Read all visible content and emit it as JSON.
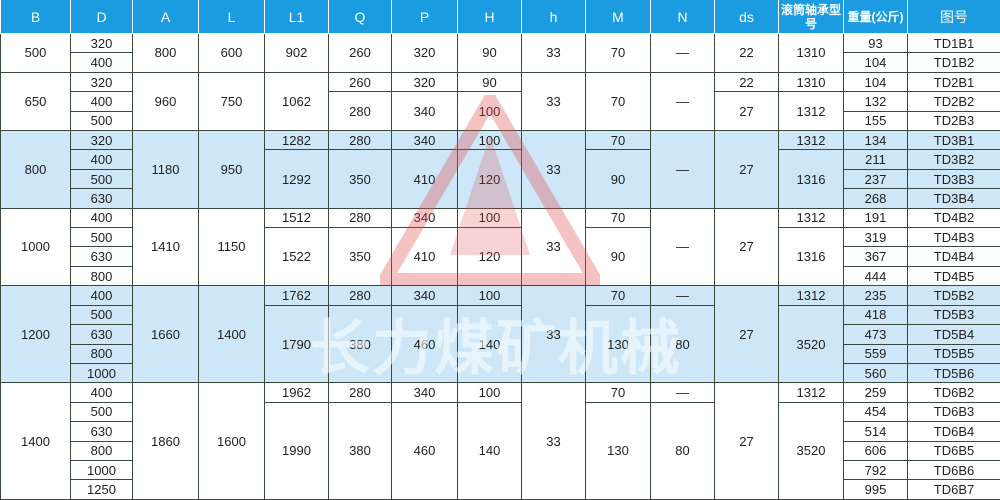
{
  "headers": [
    "B",
    "D",
    "A",
    "L",
    "L1",
    "Q",
    "P",
    "H",
    "h",
    "M",
    "N",
    "ds",
    "滚筒轴承型号",
    "重量(公斤)",
    "图号"
  ],
  "colors": {
    "header": "#1b9be0",
    "highlight_row": "#cde7f8",
    "watermark": "#e05050"
  },
  "watermark": "长力煤矿机械",
  "groups": [
    {
      "highlight": false,
      "rows": [
        [
          {
            "t": "500",
            "rs": 2
          },
          {
            "t": "320"
          },
          {
            "t": "800",
            "rs": 2
          },
          {
            "t": "600",
            "rs": 2
          },
          {
            "t": "902",
            "rs": 2
          },
          {
            "t": "260",
            "rs": 2
          },
          {
            "t": "320",
            "rs": 2
          },
          {
            "t": "90",
            "rs": 2
          },
          {
            "t": "33",
            "rs": 2
          },
          {
            "t": "70",
            "rs": 2
          },
          {
            "t": "—",
            "rs": 2
          },
          {
            "t": "22",
            "rs": 2
          },
          {
            "t": "1310",
            "rs": 2
          },
          {
            "t": "93"
          },
          {
            "t": "TD1B1"
          }
        ],
        [
          {
            "t": "400"
          },
          {
            "t": "104"
          },
          {
            "t": "TD1B2"
          }
        ]
      ]
    },
    {
      "highlight": false,
      "rows": [
        [
          {
            "t": "650",
            "rs": 3
          },
          {
            "t": "320"
          },
          {
            "t": "960",
            "rs": 3
          },
          {
            "t": "750",
            "rs": 3
          },
          {
            "t": "1062",
            "rs": 3
          },
          {
            "t": "260"
          },
          {
            "t": "320"
          },
          {
            "t": "90"
          },
          {
            "t": "33",
            "rs": 3
          },
          {
            "t": "70",
            "rs": 3
          },
          {
            "t": "—",
            "rs": 3
          },
          {
            "t": "22"
          },
          {
            "t": "1310"
          },
          {
            "t": "104"
          },
          {
            "t": "TD2B1"
          }
        ],
        [
          {
            "t": "400"
          },
          {
            "t": "280",
            "rs": 2
          },
          {
            "t": "340",
            "rs": 2
          },
          {
            "t": "100",
            "rs": 2
          },
          {
            "t": "27",
            "rs": 2
          },
          {
            "t": "1312",
            "rs": 2
          },
          {
            "t": "132"
          },
          {
            "t": "TD2B2"
          }
        ],
        [
          {
            "t": "500"
          },
          {
            "t": "155"
          },
          {
            "t": "TD2B3"
          }
        ]
      ]
    },
    {
      "highlight": true,
      "rows": [
        [
          {
            "t": "800",
            "rs": 4
          },
          {
            "t": "320"
          },
          {
            "t": "1180",
            "rs": 4
          },
          {
            "t": "950",
            "rs": 4
          },
          {
            "t": "1282"
          },
          {
            "t": "280"
          },
          {
            "t": "340"
          },
          {
            "t": "100"
          },
          {
            "t": "33",
            "rs": 4
          },
          {
            "t": "70"
          },
          {
            "t": "—",
            "rs": 4
          },
          {
            "t": "27",
            "rs": 4
          },
          {
            "t": "1312"
          },
          {
            "t": "134"
          },
          {
            "t": "TD3B1"
          }
        ],
        [
          {
            "t": "400"
          },
          {
            "t": "1292",
            "rs": 3
          },
          {
            "t": "350",
            "rs": 3
          },
          {
            "t": "410",
            "rs": 3
          },
          {
            "t": "120",
            "rs": 3
          },
          {
            "t": "90",
            "rs": 3
          },
          {
            "t": "1316",
            "rs": 3
          },
          {
            "t": "211"
          },
          {
            "t": "TD3B2"
          }
        ],
        [
          {
            "t": "500"
          },
          {
            "t": "237"
          },
          {
            "t": "TD3B3"
          }
        ],
        [
          {
            "t": "630"
          },
          {
            "t": "268"
          },
          {
            "t": "TD3B4"
          }
        ]
      ]
    },
    {
      "highlight": false,
      "rows": [
        [
          {
            "t": "1000",
            "rs": 4
          },
          {
            "t": "400"
          },
          {
            "t": "1410",
            "rs": 4
          },
          {
            "t": "1150",
            "rs": 4
          },
          {
            "t": "1512"
          },
          {
            "t": "280"
          },
          {
            "t": "340"
          },
          {
            "t": "100"
          },
          {
            "t": "33",
            "rs": 4
          },
          {
            "t": "70"
          },
          {
            "t": "—",
            "rs": 4
          },
          {
            "t": "27",
            "rs": 4
          },
          {
            "t": "1312"
          },
          {
            "t": "191"
          },
          {
            "t": "TD4B2"
          }
        ],
        [
          {
            "t": "500"
          },
          {
            "t": "1522",
            "rs": 3
          },
          {
            "t": "350",
            "rs": 3
          },
          {
            "t": "410",
            "rs": 3
          },
          {
            "t": "120",
            "rs": 3
          },
          {
            "t": "90",
            "rs": 3
          },
          {
            "t": "1316",
            "rs": 3
          },
          {
            "t": "319"
          },
          {
            "t": "TD4B3"
          }
        ],
        [
          {
            "t": "630"
          },
          {
            "t": "367"
          },
          {
            "t": "TD4B4"
          }
        ],
        [
          {
            "t": "800"
          },
          {
            "t": "444"
          },
          {
            "t": "TD4B5"
          }
        ]
      ]
    },
    {
      "highlight": true,
      "rows": [
        [
          {
            "t": "1200",
            "rs": 5
          },
          {
            "t": "400"
          },
          {
            "t": "1660",
            "rs": 5
          },
          {
            "t": "1400",
            "rs": 5
          },
          {
            "t": "1762"
          },
          {
            "t": "280"
          },
          {
            "t": "340"
          },
          {
            "t": "100"
          },
          {
            "t": "33",
            "rs": 5
          },
          {
            "t": "70"
          },
          {
            "t": "—"
          },
          {
            "t": "27",
            "rs": 5
          },
          {
            "t": "1312"
          },
          {
            "t": "235"
          },
          {
            "t": "TD5B2"
          }
        ],
        [
          {
            "t": "500"
          },
          {
            "t": "1790",
            "rs": 4
          },
          {
            "t": "380",
            "rs": 4
          },
          {
            "t": "460",
            "rs": 4
          },
          {
            "t": "140",
            "rs": 4
          },
          {
            "t": "130",
            "rs": 4
          },
          {
            "t": "80",
            "rs": 4
          },
          {
            "t": "3520",
            "rs": 4
          },
          {
            "t": "418"
          },
          {
            "t": "TD5B3"
          }
        ],
        [
          {
            "t": "630"
          },
          {
            "t": "473"
          },
          {
            "t": "TD5B4"
          }
        ],
        [
          {
            "t": "800"
          },
          {
            "t": "559"
          },
          {
            "t": "TD5B5"
          }
        ],
        [
          {
            "t": "1000"
          },
          {
            "t": "560"
          },
          {
            "t": "TD5B6"
          }
        ]
      ]
    },
    {
      "highlight": false,
      "rows": [
        [
          {
            "t": "1400",
            "rs": 6
          },
          {
            "t": "400"
          },
          {
            "t": "1860",
            "rs": 6
          },
          {
            "t": "1600",
            "rs": 6
          },
          {
            "t": "1962"
          },
          {
            "t": "280"
          },
          {
            "t": "340"
          },
          {
            "t": "100"
          },
          {
            "t": "33",
            "rs": 6
          },
          {
            "t": "70"
          },
          {
            "t": "—"
          },
          {
            "t": "27",
            "rs": 6
          },
          {
            "t": "1312"
          },
          {
            "t": "259"
          },
          {
            "t": "TD6B2"
          }
        ],
        [
          {
            "t": "500"
          },
          {
            "t": "1990",
            "rs": 5
          },
          {
            "t": "380",
            "rs": 5
          },
          {
            "t": "460",
            "rs": 5
          },
          {
            "t": "140",
            "rs": 5
          },
          {
            "t": "130",
            "rs": 5
          },
          {
            "t": "80",
            "rs": 5
          },
          {
            "t": "3520",
            "rs": 5
          },
          {
            "t": "454"
          },
          {
            "t": "TD6B3"
          }
        ],
        [
          {
            "t": "630"
          },
          {
            "t": "514"
          },
          {
            "t": "TD6B4"
          }
        ],
        [
          {
            "t": "800"
          },
          {
            "t": "606"
          },
          {
            "t": "TD6B5"
          }
        ],
        [
          {
            "t": "1000"
          },
          {
            "t": "792"
          },
          {
            "t": "TD6B6"
          }
        ],
        [
          {
            "t": "1250"
          },
          {
            "t": "995"
          },
          {
            "t": "TD6B7"
          }
        ]
      ]
    }
  ]
}
